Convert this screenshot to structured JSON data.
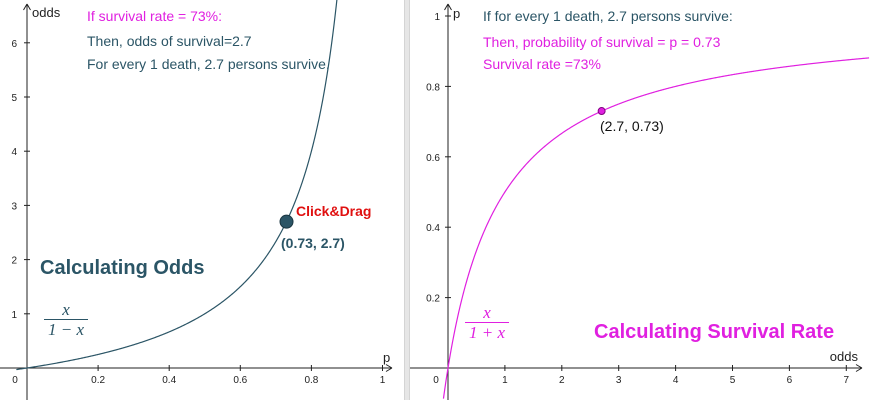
{
  "left_graph": {
    "x_axis_label": "p",
    "y_axis_label": "odds",
    "x_tick_labels": [
      "0",
      "0.2",
      "0.4",
      "0.6",
      "0.8",
      "1"
    ],
    "y_tick_labels": [
      "1",
      "2",
      "3",
      "4",
      "5",
      "6"
    ],
    "text_line_1": "If survival rate = 73%:",
    "text_line_2": "Then, odds of survival=2.7",
    "text_line_3": "For every 1 death, 2.7 persons survive.",
    "drag_hint": "Click&Drag",
    "point_label": "(0.73, 2.7)",
    "title": "Calculating Odds",
    "formula_numerator": "x",
    "formula_denominator": "1 − x",
    "point": {
      "p": 0.73,
      "odds": 2.7
    },
    "colors": {
      "curve": "#2b5566",
      "point": "#2b5566",
      "title": "#2b5566",
      "hint": "#e01010",
      "first_line": "#e020e0",
      "info": "#2b5566"
    }
  },
  "right_graph": {
    "x_axis_label": "odds",
    "y_axis_label": "p",
    "x_tick_labels": [
      "0",
      "1",
      "2",
      "3",
      "4",
      "5",
      "6",
      "7"
    ],
    "y_tick_labels": [
      "0.2",
      "0.4",
      "0.6",
      "0.8",
      "1"
    ],
    "text_line_1": "If for every 1 death, 2.7 persons survive:",
    "text_line_2": "Then, probability of survival = p = 0.73",
    "text_line_3": "Survival rate =73%",
    "point_label": "(2.7, 0.73)",
    "title": "Calculating Survival Rate",
    "formula_numerator": "x",
    "formula_denominator": "1 + x",
    "point": {
      "odds": 2.7,
      "p": 0.73
    },
    "colors": {
      "curve": "#e020e0",
      "point": "#e020e0",
      "title": "#e020e0",
      "first_line": "#2b5566",
      "info": "#e020e0"
    }
  }
}
